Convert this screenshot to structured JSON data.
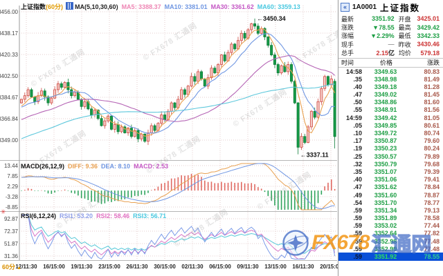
{
  "left": {
    "main_header": {
      "title": "上证指数",
      "period": "(60分)",
      "ma_label": "MA(5,10,30,60)",
      "ma_items": [
        {
          "label": "MA5: 3388.37",
          "color": "#ee86b4"
        },
        {
          "label": "MA10: 3381.01",
          "color": "#6f96e2"
        },
        {
          "label": "MA30: 3361.62",
          "color": "#c457c4"
        },
        {
          "label": "MA60: 3359.13",
          "color": "#49c8e0"
        }
      ]
    },
    "macd_header": {
      "title": "MACD(26,12,9)",
      "items": [
        {
          "label": "DIFF: 9.36",
          "color": "#e8a050"
        },
        {
          "label": "DEA: 8.10",
          "color": "#6f96e2"
        },
        {
          "label": "MACD: 2.53",
          "color": "#c457c4"
        }
      ]
    },
    "rsi_header": {
      "title": "RSI(6,12,24)",
      "items": [
        {
          "label": "RSI1: 53.20",
          "color": "#8f9fe8"
        },
        {
          "label": "RSI2: 58.46",
          "color": "#e070c0"
        },
        {
          "label": "RSI3: 56.71",
          "color": "#49c8e0"
        }
      ]
    },
    "period_label": "60分",
    "marker_icon": "✳"
  },
  "chart_data": {
    "type": "candlestick",
    "title": "上证指数(60分)",
    "price_axis": [
      "3456.00",
      "3438.17",
      "3420.33",
      "3402.50",
      "3384.67",
      "3366.84",
      "3349.00"
    ],
    "macd_axis": [
      "13.44",
      "7.85",
      "2.29",
      "-3.28",
      "-8.85"
    ],
    "rsi_axis": [
      "92.87",
      "72.37",
      "51.87",
      "31.36"
    ],
    "x_labels": [
      "12/11:30",
      "16/15:00",
      "19/11:30",
      "23/15:00",
      "26/11:30",
      "30/15:00",
      "02/11:30",
      "06/15:00",
      "09/11:30",
      "13/15:00",
      "16/11:30",
      "20/15:00"
    ],
    "ma_values": {
      "MA5": 3388.37,
      "MA10": 3381.01,
      "MA30": 3361.62,
      "MA60": 3359.13
    },
    "macd_values": {
      "DIFF": 9.36,
      "DEA": 8.1,
      "MACD": 2.53
    },
    "rsi_values": {
      "RSI1": 53.2,
      "RSI2": 58.46,
      "RSI3": 56.71
    },
    "candles": {
      "first_open": 3380,
      "closes": [
        3383,
        3386,
        3391,
        3385,
        3381,
        3386,
        3390,
        3385,
        3380,
        3384,
        3391,
        3396,
        3393,
        3397,
        3391,
        3386,
        3389,
        3383,
        3377,
        3381,
        3375,
        3370,
        3374,
        3367,
        3361,
        3365,
        3369,
        3358,
        3362,
        3356,
        3360,
        3355,
        3359,
        3352,
        3357,
        3350,
        3354,
        3348,
        3355,
        3361,
        3357,
        3363,
        3370,
        3366,
        3373,
        3380,
        3376,
        3383,
        3391,
        3387,
        3394,
        3402,
        3398,
        3406,
        3400,
        3394,
        3401,
        3409,
        3405,
        3412,
        3420,
        3415,
        3422,
        3429,
        3425,
        3432,
        3438,
        3434,
        3441,
        3446,
        3444,
        3438,
        3442,
        3435,
        3428,
        3420,
        3412,
        3405,
        3411,
        3406,
        3412,
        3398,
        3380,
        3343,
        3352,
        3347,
        3360,
        3373,
        3368,
        3381,
        3392,
        3402,
        3395,
        3400,
        3351.92
      ],
      "high_marker": {
        "index": 70,
        "value": 3450.34,
        "label": "←3450.34"
      },
      "low_marker": {
        "index": 83,
        "value": 3337.11,
        "label": "←3337.11"
      },
      "last_candle": {
        "open": 3398,
        "high": 3400,
        "low": 3342,
        "close": 3351.92
      }
    }
  },
  "panel": {
    "code": "1A0001",
    "name": "上证指数",
    "quote": [
      {
        "l1": "最新",
        "v1": "3351.92",
        "c1": "gr",
        "l2": "开盘",
        "v2": "3425.01",
        "c2": "rd"
      },
      {
        "l1": "涨跌",
        "v1": "▼78.55",
        "c1": "gr",
        "l2": "最高",
        "v2": "3429.42",
        "c2": "gr"
      },
      {
        "l1": "涨幅",
        "v1": "▼2.29%",
        "c1": "gr",
        "l2": "最低",
        "v2": "3342.33",
        "c2": "gr"
      },
      {
        "l1": "现手",
        "v1": "—",
        "c1": "gy",
        "l2": "昨收",
        "v2": "3430.46",
        "c2": "rd"
      },
      {
        "l1": "总手",
        "v1": "2.15",
        "s1": "亿",
        "c1": "rd",
        "l2": "均价",
        "v2": "579.18",
        "c2": "rd"
      }
    ],
    "table": {
      "headers": [
        "时间",
        "价格",
        "涨跌"
      ],
      "selected_index": 24,
      "rows": [
        [
          "14:58",
          "3349.63",
          "80.83"
        ],
        [
          ".35",
          "3348.98",
          "81.49"
        ],
        [
          ".40",
          "3349.18",
          "81.28"
        ],
        [
          ".47",
          "3349.02",
          "81.45"
        ],
        [
          ".50",
          "3348.86",
          "81.60"
        ],
        [
          ".55",
          "3348.91",
          "81.56"
        ],
        [
          "14:59",
          "3349.42",
          "81.05"
        ],
        [
          ".05",
          "3349.85",
          "80.61"
        ],
        [
          ".10",
          "3349.72",
          "80.74"
        ],
        [
          ".17",
          "3350.87",
          "79.60"
        ],
        [
          ".19",
          "3350.23",
          "80.24"
        ],
        [
          ".25",
          "3350.57",
          "79.89"
        ],
        [
          ".32",
          "3350.79",
          "79.68"
        ],
        [
          ".35",
          "3351.07",
          "79.39"
        ],
        [
          ".40",
          "3351.06",
          "79.41"
        ],
        [
          ".47",
          "3351.62",
          "78.84"
        ],
        [
          ".49",
          "3351.60",
          "78.87"
        ],
        [
          ".54",
          "3351.70",
          "78.77"
        ],
        [
          ".59",
          "3351.34",
          "79.13"
        ],
        [
          ".59",
          "3351.89",
          "78.58"
        ],
        [
          ".59",
          "3353.02",
          "77.44"
        ],
        [
          ".59",
          "3352.64",
          "77.82"
        ],
        [
          ".59",
          "3352.98",
          "77.48"
        ],
        [
          ".59",
          "3352.99",
          "77.48"
        ],
        [
          ".59",
          "3351.92",
          "78.55"
        ]
      ]
    }
  },
  "watermark": {
    "text": "© FX678 汇通网",
    "logo_text": "FX678",
    "logo_cn": "汇通网"
  },
  "colors": {
    "up_fill": "#f5c9c4",
    "up_stroke": "#cf4a42",
    "down_fill": "#169a47",
    "down_stroke": "#0d7d38",
    "ma5": "#e8a050",
    "ma10": "#6f96e2",
    "ma30": "#b564b5",
    "ma60": "#5ec8dc",
    "diff": "#e8a050",
    "dea": "#6f96e2",
    "hist_pos": "#e06a62",
    "hist_neg": "#2fa35c",
    "rsi1": "#7b9be8",
    "rsi2": "#d878c8",
    "rsi3": "#55c8d8",
    "grid": "#e6cdcd",
    "separator": "#b5b5b5",
    "selected_row": "#0a50d8"
  }
}
